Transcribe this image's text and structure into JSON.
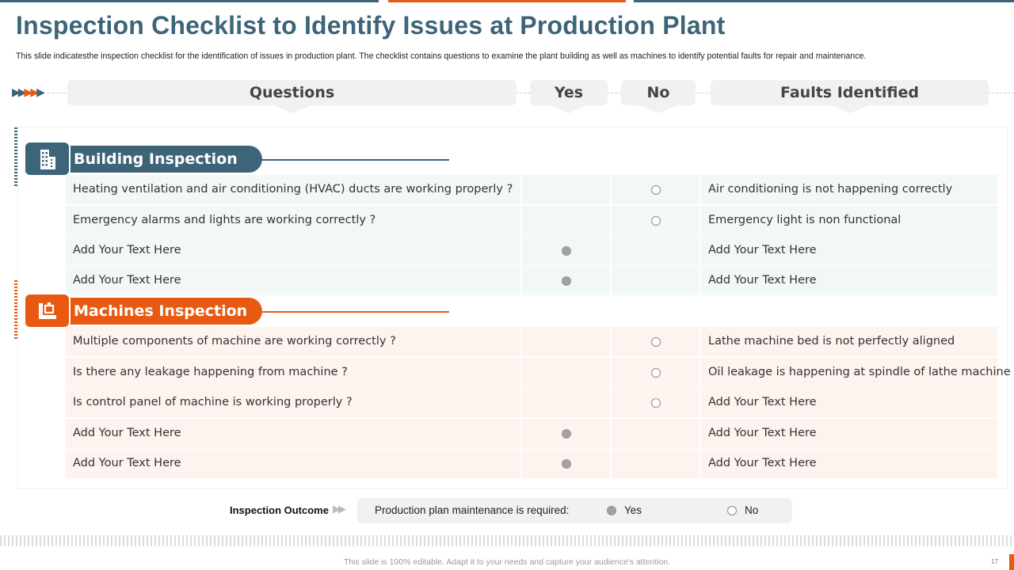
{
  "title": "Inspection Checklist to Identify Issues at Production Plant",
  "subtitle": "This slide indicatesthe inspection checklist for the identification of issues in production plant. The checklist contains questions to examine the plant building as well as machines to identify potential faults for repair and maintenance.",
  "headers": {
    "questions": "Questions",
    "yes": "Yes",
    "no": "No",
    "faults": "Faults Identified"
  },
  "colors": {
    "slate": "#3d6478",
    "orange": "#e85a12"
  },
  "building": {
    "title": "Building Inspection",
    "icon": "building-icon",
    "rows": [
      {
        "question": "Heating ventilation and air conditioning (HVAC) ducts are working properly ?",
        "answer": "no",
        "fault": "Air conditioning is not happening correctly"
      },
      {
        "question": "Emergency alarms and lights are working correctly ?",
        "answer": "no",
        "fault": "Emergency light is non functional"
      },
      {
        "question": "Add Your Text Here",
        "answer": "yes",
        "fault": "Add Your Text Here"
      },
      {
        "question": "Add Your Text Here",
        "answer": "yes",
        "fault": "Add Your Text Here"
      }
    ]
  },
  "machines": {
    "title": "Machines Inspection",
    "icon": "machine-icon",
    "rows": [
      {
        "question": "Multiple components of machine are working correctly ?",
        "answer": "no",
        "fault": "Lathe machine bed is not perfectly aligned"
      },
      {
        "question": "Is there any leakage happening from machine ?",
        "answer": "no",
        "fault": "Oil leakage is happening at spindle of lathe machine"
      },
      {
        "question": "Is control panel of machine is working properly ?",
        "answer": "no",
        "fault": "Add Your Text Here"
      },
      {
        "question": "Add Your Text Here",
        "answer": "yes",
        "fault": "Add Your Text Here"
      },
      {
        "question": "Add Your Text Here",
        "answer": "yes",
        "fault": "Add Your Text Here"
      }
    ]
  },
  "outcome": {
    "label": "Inspection Outcome",
    "text": "Production plan maintenance is required:",
    "yes_label": "Yes",
    "no_label": "No",
    "selected": "yes"
  },
  "footer": "This slide is 100% editable. Adapt it to your needs and capture your audience's attention.",
  "page_number": "17"
}
